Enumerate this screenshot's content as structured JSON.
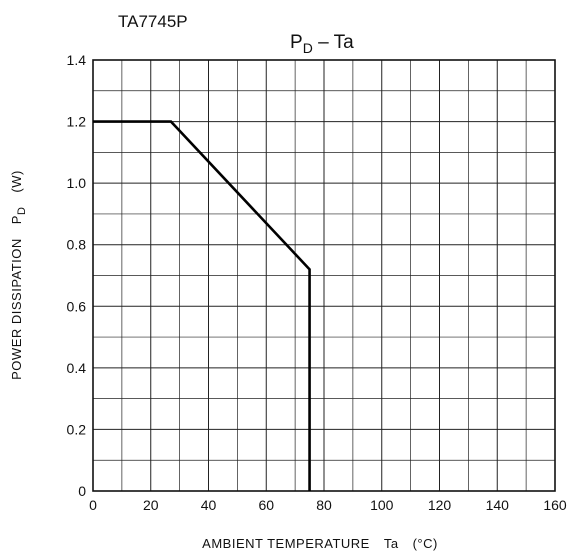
{
  "chart_data": {
    "type": "line",
    "part_label": "TA7745P",
    "title": "P",
    "title_subscript": "D",
    "title_suffix": " – Ta",
    "xlabel": "AMBIENT TEMPERATURE",
    "xlabel_symbol": "Ta",
    "xlabel_unit": "(°C)",
    "ylabel": "POWER DISSIPATION",
    "ylabel_symbol": "P",
    "ylabel_symbol_subscript": "D",
    "ylabel_unit": "(W)",
    "xlim": [
      0,
      160
    ],
    "ylim": [
      0,
      1.4
    ],
    "x_ticks": [
      "0",
      "20",
      "40",
      "60",
      "80",
      "100",
      "120",
      "140",
      "160"
    ],
    "y_ticks": [
      "0",
      "0.2",
      "0.4",
      "0.6",
      "0.8",
      "1.0",
      "1.2",
      "1.4"
    ],
    "x_tick_values": [
      0,
      20,
      40,
      60,
      80,
      100,
      120,
      140,
      160
    ],
    "y_tick_values": [
      0,
      0.2,
      0.4,
      0.6,
      0.8,
      1.0,
      1.2,
      1.4
    ],
    "x_minor_step": 10,
    "y_minor_step": 0.1,
    "grid": true,
    "series": [
      {
        "x": [
          0,
          27,
          75,
          75
        ],
        "y": [
          1.2,
          1.2,
          0.72,
          0
        ]
      }
    ]
  }
}
